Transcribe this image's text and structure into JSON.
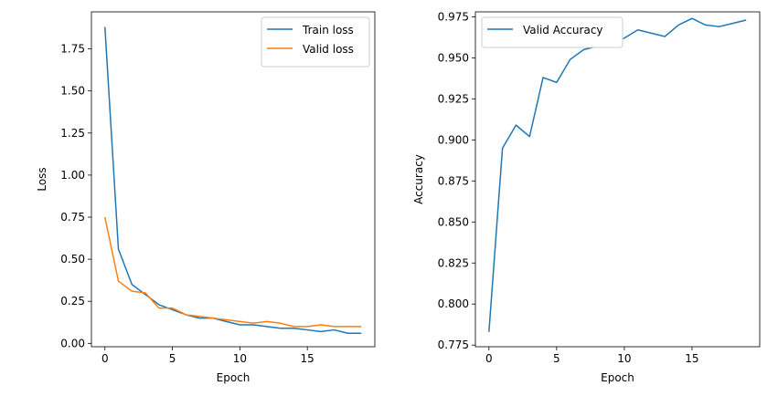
{
  "chart_data": [
    {
      "type": "line",
      "title": "",
      "xlabel": "Epoch",
      "ylabel": "Loss",
      "xlim": [
        -1,
        20
      ],
      "ylim": [
        -0.02,
        1.97
      ],
      "xticks": [
        0,
        5,
        10,
        15
      ],
      "xtick_labels": [
        "0",
        "5",
        "10",
        "15"
      ],
      "yticks": [
        0.0,
        0.25,
        0.5,
        0.75,
        1.0,
        1.25,
        1.5,
        1.75
      ],
      "ytick_labels": [
        "0.00",
        "0.25",
        "0.50",
        "0.75",
        "1.00",
        "1.25",
        "1.50",
        "1.75"
      ],
      "grid": false,
      "legend_position": "top-right",
      "x": [
        0,
        1,
        2,
        3,
        4,
        5,
        6,
        7,
        8,
        9,
        10,
        11,
        12,
        13,
        14,
        15,
        16,
        17,
        18,
        19
      ],
      "series": [
        {
          "name": "Train loss",
          "color": "#1f77b4",
          "values": [
            1.88,
            0.56,
            0.35,
            0.29,
            0.23,
            0.2,
            0.17,
            0.15,
            0.15,
            0.13,
            0.11,
            0.11,
            0.1,
            0.09,
            0.09,
            0.08,
            0.07,
            0.08,
            0.06,
            0.06
          ]
        },
        {
          "name": "Valid loss",
          "color": "#ff7f0e",
          "values": [
            0.75,
            0.37,
            0.31,
            0.3,
            0.21,
            0.21,
            0.17,
            0.16,
            0.15,
            0.14,
            0.13,
            0.12,
            0.13,
            0.12,
            0.1,
            0.1,
            0.11,
            0.1,
            0.1,
            0.1
          ]
        }
      ]
    },
    {
      "type": "line",
      "title": "",
      "xlabel": "Epoch",
      "ylabel": "Accuracy",
      "xlim": [
        -1,
        20
      ],
      "ylim": [
        0.774,
        0.978
      ],
      "xticks": [
        0,
        5,
        10,
        15
      ],
      "xtick_labels": [
        "0",
        "5",
        "10",
        "15"
      ],
      "yticks": [
        0.775,
        0.8,
        0.825,
        0.85,
        0.875,
        0.9,
        0.925,
        0.95,
        0.975
      ],
      "ytick_labels": [
        "0.775",
        "0.800",
        "0.825",
        "0.850",
        "0.875",
        "0.900",
        "0.925",
        "0.950",
        "0.975"
      ],
      "grid": false,
      "legend_position": "top-left",
      "x": [
        0,
        1,
        2,
        3,
        4,
        5,
        6,
        7,
        8,
        9,
        10,
        11,
        12,
        13,
        14,
        15,
        16,
        17,
        18,
        19
      ],
      "series": [
        {
          "name": "Valid Accuracy",
          "color": "#1f77b4",
          "values": [
            0.783,
            0.895,
            0.909,
            0.902,
            0.938,
            0.935,
            0.949,
            0.955,
            0.957,
            0.959,
            0.962,
            0.967,
            0.965,
            0.963,
            0.97,
            0.974,
            0.97,
            0.969,
            0.971,
            0.973
          ]
        }
      ]
    }
  ]
}
